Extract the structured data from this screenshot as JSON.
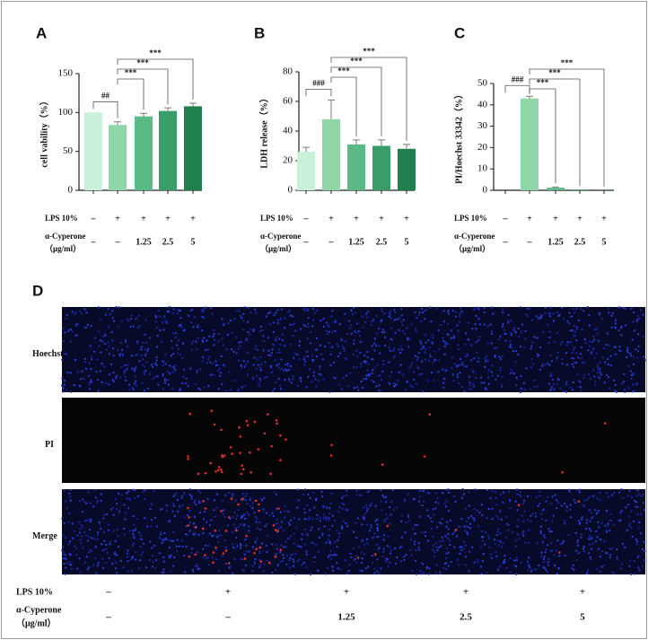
{
  "chart_data": [
    {
      "type": "bar",
      "panel": "A",
      "ylabel": "cell vability（%）",
      "values": [
        100,
        84,
        95,
        102,
        108
      ],
      "errors": [
        0,
        4,
        4,
        4,
        4
      ],
      "colors": [
        "#c9f1da",
        "#8fd6a9",
        "#5bbb87",
        "#3a9d69",
        "#1f7f4f"
      ],
      "ylim": [
        0,
        150
      ],
      "yticks": [
        0,
        50,
        100,
        150
      ],
      "annotations": [
        "##",
        "***",
        "***",
        "***"
      ],
      "treatment_rows": [
        {
          "label": [
            "LPS 10%"
          ],
          "values": [
            "–",
            "+",
            "+",
            "+",
            "+"
          ]
        },
        {
          "label": [
            "α-Cyperone",
            "（μg/ml）"
          ],
          "values": [
            "–",
            "–",
            "1.25",
            "2.5",
            "5"
          ]
        }
      ]
    },
    {
      "type": "bar",
      "panel": "B",
      "ylabel": "LDH release（%）",
      "values": [
        26,
        48,
        31,
        30,
        28
      ],
      "errors": [
        3,
        13,
        3,
        4,
        3
      ],
      "colors": [
        "#c9f1da",
        "#8fd6a9",
        "#5bbb87",
        "#3a9d69",
        "#1f7f4f"
      ],
      "ylim": [
        0,
        80
      ],
      "yticks": [
        0,
        20,
        40,
        60,
        80
      ],
      "annotations": [
        "###",
        "***",
        "***",
        "***"
      ],
      "treatment_rows": [
        {
          "label": [
            "LPS 10%"
          ],
          "values": [
            "–",
            "+",
            "+",
            "+",
            "+"
          ]
        },
        {
          "label": [
            "α-Cyperone",
            "（μg/ml）"
          ],
          "values": [
            "–",
            "–",
            "1.25",
            "2.5",
            "5"
          ]
        }
      ]
    },
    {
      "type": "bar",
      "panel": "C",
      "ylabel": "PI/Hoechst 33342（%）",
      "values": [
        0,
        43,
        1.2,
        0.3,
        0.1
      ],
      "errors": [
        0,
        1,
        0.3,
        0,
        0
      ],
      "colors": [
        "#c9f1da",
        "#8fd6a9",
        "#5bbb87",
        "#3a9d69",
        "#1f7f4f"
      ],
      "ylim": [
        0,
        50
      ],
      "yticks": [
        0,
        10,
        20,
        30,
        40,
        50
      ],
      "annotations": [
        "###",
        "***",
        "***",
        "***"
      ],
      "treatment_rows": [
        {
          "label": [
            "LPS 10%"
          ],
          "values": [
            "–",
            "+",
            "+",
            "+",
            "+"
          ]
        },
        {
          "label": [
            "α-Cyperone",
            "（μg/ml）"
          ],
          "values": [
            "–",
            "–",
            "1.25",
            "2.5",
            "5"
          ]
        }
      ]
    }
  ],
  "panel_d": {
    "panel": "D",
    "row_labels": [
      "Hoechst",
      "PI",
      "Merge"
    ],
    "treatment_rows": [
      {
        "label": [
          "LPS 10%"
        ],
        "values": [
          "–",
          "+",
          "+",
          "+",
          "+"
        ]
      },
      {
        "label": [
          "α-Cyperone",
          "（μg/ml）"
        ],
        "values": [
          "–",
          "–",
          "1.25",
          "2.5",
          "5"
        ]
      }
    ]
  }
}
